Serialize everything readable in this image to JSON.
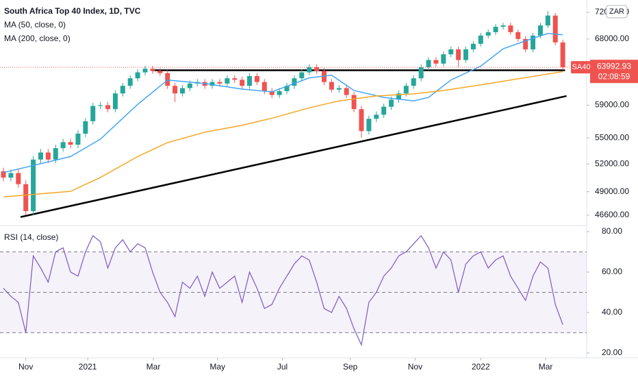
{
  "chart_data": [
    {
      "type": "candlestick",
      "title": "South Africa Top 40 Index, 1D, TVC",
      "log_scale": true,
      "up_color": "#26a69a",
      "down_color": "#ef5350",
      "x": [
        0,
        1,
        2,
        3,
        4,
        5,
        6,
        7,
        8,
        9,
        10,
        11,
        12,
        13,
        14,
        15,
        16,
        17,
        18,
        19,
        20,
        21,
        22,
        23,
        24,
        25,
        26,
        27,
        28,
        29,
        30,
        31,
        32,
        33,
        34,
        35,
        36,
        37,
        38,
        39,
        40,
        41,
        42,
        43,
        44,
        45,
        46,
        47,
        48,
        49,
        50,
        51,
        52,
        53,
        54,
        55,
        56,
        57,
        58,
        59,
        60,
        61,
        62,
        63,
        64,
        65,
        66,
        67,
        68,
        69,
        70,
        71,
        72,
        73,
        74,
        75
      ],
      "open": [
        51200,
        50500,
        51000,
        49800,
        47000,
        52500,
        53300,
        52500,
        53800,
        54500,
        54200,
        55500,
        57000,
        58900,
        59000,
        58500,
        60500,
        61500,
        62500,
        63300,
        63800,
        63500,
        63200,
        61500,
        60500,
        61200,
        61800,
        62000,
        61500,
        62000,
        61800,
        62500,
        62300,
        61500,
        62800,
        62000,
        60800,
        60300,
        60800,
        61500,
        62500,
        63300,
        64000,
        63500,
        62000,
        61000,
        61200,
        60300,
        58500,
        55800,
        57300,
        57800,
        58800,
        59700,
        60500,
        61500,
        62500,
        64000,
        65000,
        64500,
        65800,
        66500,
        65000,
        66500,
        67300,
        68500,
        69000,
        69800,
        70000,
        69000,
        68000,
        66500,
        68500,
        70000,
        71500,
        67500
      ],
      "high": [
        51600,
        51400,
        51400,
        50200,
        52900,
        53700,
        53700,
        54200,
        54900,
        54900,
        55900,
        57400,
        59300,
        59400,
        59400,
        60900,
        61900,
        62900,
        63700,
        64200,
        64200,
        63900,
        63600,
        61900,
        61600,
        62200,
        62400,
        62400,
        62400,
        62400,
        62900,
        62900,
        62700,
        63200,
        63200,
        62400,
        61200,
        61200,
        61900,
        62900,
        63700,
        64400,
        64400,
        63900,
        62400,
        61600,
        61600,
        60700,
        58900,
        57700,
        58200,
        59200,
        60100,
        60900,
        61900,
        62900,
        64400,
        65400,
        65400,
        66200,
        66900,
        66900,
        66900,
        67700,
        68900,
        69400,
        70200,
        70400,
        70400,
        69400,
        68400,
        68900,
        70400,
        72200,
        71900,
        67900
      ],
      "low": [
        50100,
        50100,
        49400,
        46600,
        46600,
        52100,
        52100,
        52100,
        53400,
        53800,
        53800,
        55100,
        56600,
        58500,
        58100,
        58100,
        60100,
        61100,
        62100,
        62900,
        63100,
        62800,
        61100,
        59400,
        60100,
        60800,
        61400,
        61100,
        61100,
        61400,
        61400,
        61900,
        61100,
        61100,
        61600,
        60400,
        59900,
        59900,
        60400,
        61100,
        62100,
        62900,
        63100,
        61600,
        60600,
        60600,
        59900,
        58100,
        55000,
        55400,
        56900,
        57400,
        58400,
        59300,
        60100,
        61100,
        62100,
        63600,
        64100,
        64100,
        65400,
        64000,
        64600,
        66100,
        66900,
        68100,
        68600,
        69400,
        68600,
        67600,
        66100,
        66100,
        68100,
        69600,
        67100,
        63600
      ],
      "close": [
        50500,
        51000,
        49800,
        47000,
        52500,
        53300,
        52500,
        53800,
        54500,
        54200,
        55500,
        57000,
        58900,
        59000,
        58500,
        60500,
        61500,
        62500,
        63300,
        63800,
        63500,
        63200,
        61500,
        60500,
        61200,
        61800,
        62000,
        61500,
        62000,
        61800,
        62500,
        62300,
        61500,
        62800,
        62000,
        60800,
        60300,
        60800,
        61500,
        62500,
        63300,
        64000,
        63500,
        62000,
        61000,
        61200,
        60300,
        58500,
        55800,
        57300,
        57800,
        58800,
        59700,
        60500,
        61500,
        62500,
        64000,
        65000,
        64500,
        65800,
        66500,
        65000,
        66500,
        67300,
        68500,
        69000,
        69800,
        70000,
        69000,
        68000,
        66500,
        68500,
        70000,
        71500,
        67500,
        63992.93
      ],
      "series": [
        {
          "name": "MA (50, close, 0)",
          "color": "#42a5f5",
          "x": [
            0,
            9,
            13,
            18,
            22,
            27,
            32,
            36,
            41,
            44,
            47,
            51,
            55,
            57,
            60,
            64,
            67,
            71,
            73,
            75
          ],
          "values": [
            51050,
            52840,
            54850,
            59100,
            62270,
            61800,
            61070,
            60710,
            62550,
            62920,
            60890,
            59990,
            59540,
            59990,
            62270,
            64150,
            66590,
            68100,
            68810,
            68610
          ]
        },
        {
          "name": "MA (200, close, 0)",
          "color": "#f5a623",
          "x": [
            0,
            9,
            13,
            18,
            22,
            27,
            32,
            36,
            41,
            45,
            50,
            55,
            59,
            64,
            68,
            75
          ],
          "values": [
            48460,
            49040,
            50520,
            52840,
            54440,
            55670,
            56510,
            57370,
            58660,
            59540,
            60170,
            60440,
            60890,
            61620,
            62270,
            63400
          ]
        }
      ],
      "trend_lines": [
        {
          "x": [
            2.3,
            75.5
          ],
          "y": [
            46410,
            60170
          ]
        },
        {
          "x": [
            19.9,
            75.3
          ],
          "y": [
            63580,
            63580
          ]
        }
      ],
      "symbol": "SA40",
      "last_price_label": "63992.93",
      "countdown": "02:08:59",
      "currency": "ZAR",
      "xlim": [
        -0.46,
        78.2
      ],
      "xticks": [
        {
          "value": 3.0,
          "label": "Nov"
        },
        {
          "value": 11.3,
          "label": "2021"
        },
        {
          "value": 20.1,
          "label": "Mar"
        },
        {
          "value": 28.7,
          "label": "May"
        },
        {
          "value": 37.4,
          "label": "Jul"
        },
        {
          "value": 46.5,
          "label": "Sep"
        },
        {
          "value": 55.2,
          "label": "Nov"
        },
        {
          "value": 64.0,
          "label": "2022"
        },
        {
          "value": 72.7,
          "label": "Mar"
        }
      ],
      "ylim": [
        45640,
        73930
      ],
      "yticks": [
        {
          "value": 46600,
          "label": "46600.00"
        },
        {
          "value": 49000,
          "label": "49000.00"
        },
        {
          "value": 52000,
          "label": "52000.00"
        },
        {
          "value": 55000,
          "label": "55000.00"
        },
        {
          "value": 59000,
          "label": "59000.00"
        },
        {
          "value": 68000,
          "label": "68000.00"
        },
        {
          "value": 72000,
          "label": "72000.00"
        }
      ]
    },
    {
      "type": "line",
      "title": "RSI (14, close)",
      "x": [
        0,
        1,
        2,
        3,
        4,
        5,
        6,
        7,
        8,
        9,
        10,
        11,
        12,
        13,
        14,
        15,
        16,
        17,
        18,
        19,
        20,
        21,
        22,
        23,
        24,
        25,
        26,
        27,
        28,
        29,
        30,
        31,
        32,
        33,
        34,
        35,
        36,
        37,
        38,
        39,
        40,
        41,
        42,
        43,
        44,
        45,
        46,
        47,
        48,
        49,
        50,
        51,
        52,
        53,
        54,
        55,
        56,
        57,
        58,
        59,
        60,
        61,
        62,
        63,
        64,
        65,
        66,
        67,
        68,
        69,
        70,
        71,
        72,
        73,
        74,
        75
      ],
      "color": "#7e57c2",
      "values": [
        52,
        48,
        45,
        30,
        68,
        62,
        55,
        70,
        72,
        60,
        58,
        70,
        78,
        75,
        62,
        72,
        76,
        70,
        74,
        72,
        60,
        50,
        45,
        38,
        55,
        52,
        58,
        48,
        60,
        52,
        55,
        58,
        45,
        60,
        52,
        42,
        44,
        52,
        58,
        64,
        68,
        66,
        55,
        42,
        40,
        48,
        42,
        32,
        24,
        45,
        50,
        58,
        62,
        68,
        70,
        74,
        78,
        72,
        62,
        70,
        66,
        50,
        64,
        68,
        70,
        62,
        66,
        68,
        58,
        52,
        46,
        58,
        65,
        62,
        44,
        34
      ],
      "bands": [
        30,
        50,
        70
      ],
      "ylim": [
        17.6,
        82.7
      ],
      "yticks": [
        {
          "value": 20,
          "label": "20.00"
        },
        {
          "value": 40,
          "label": "40.00"
        },
        {
          "value": 60,
          "label": "60.00"
        },
        {
          "value": 80,
          "label": "80.00"
        }
      ]
    }
  ]
}
